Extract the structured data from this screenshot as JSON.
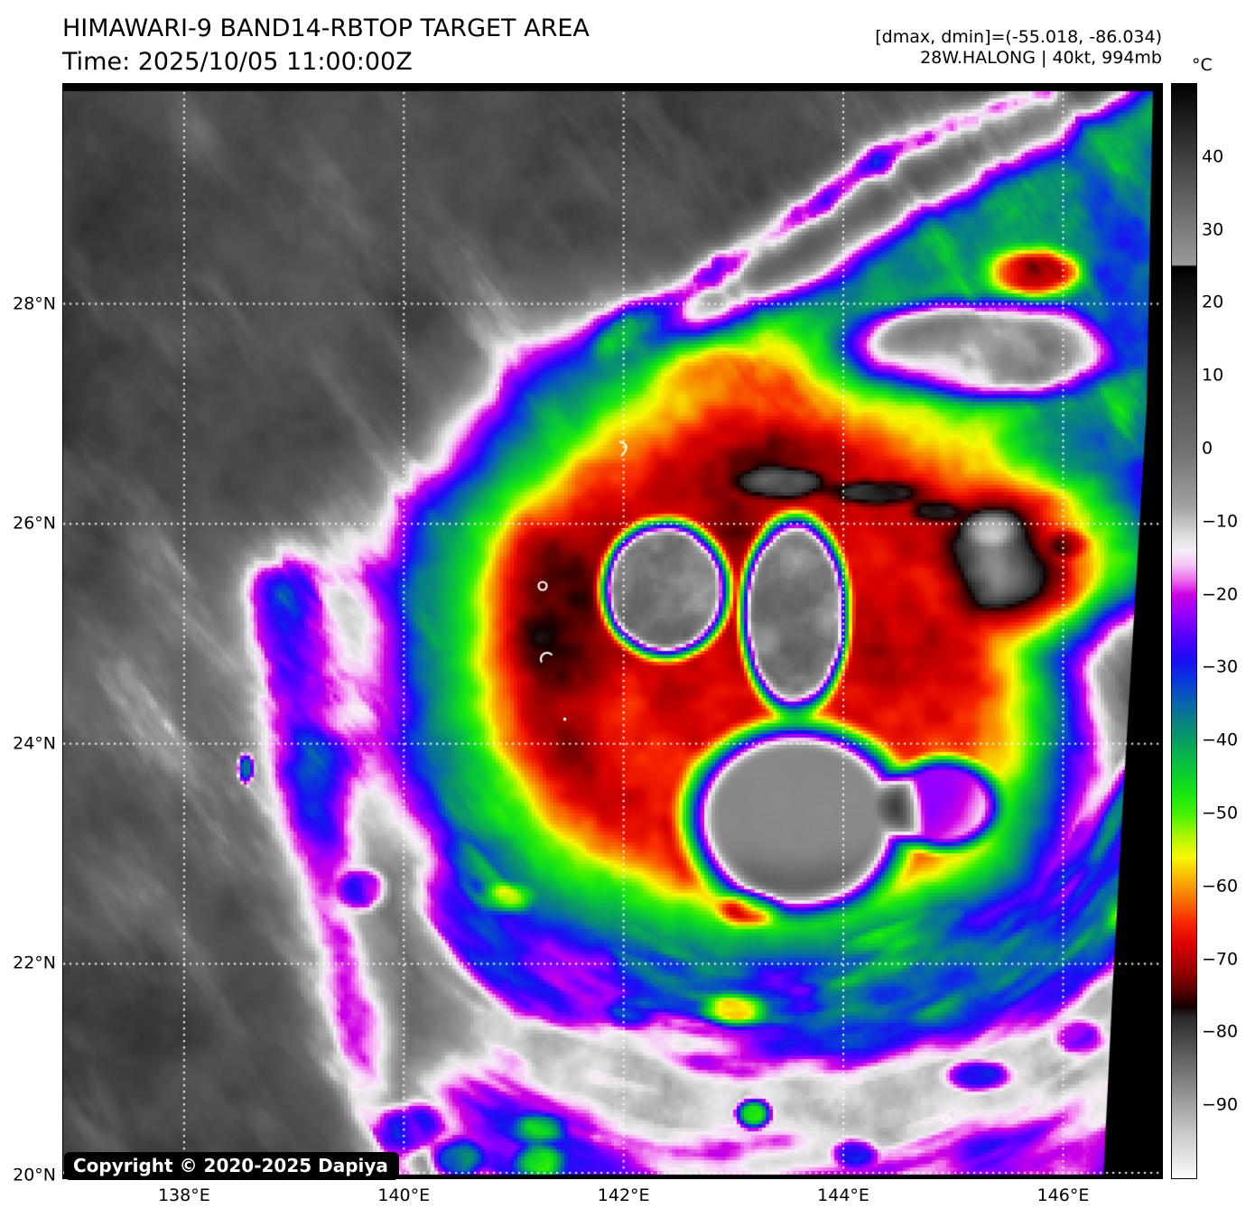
{
  "header": {
    "title": "HIMAWARI-9 BAND14-RBTOP TARGET AREA",
    "time_line": "Time: 2025/10/05 11:00:00Z",
    "dmax_dmin": "[dmax, dmin]=(-55.018, -86.034)",
    "storm_info": "28W.HALONG | 40kt, 994mb"
  },
  "colorbar": {
    "unit": "°C",
    "vmax": 50,
    "vmin": -100,
    "ticks": [
      {
        "v": 40,
        "label": "40"
      },
      {
        "v": 30,
        "label": "30"
      },
      {
        "v": 20,
        "label": "20"
      },
      {
        "v": 10,
        "label": "10"
      },
      {
        "v": 0,
        "label": "0"
      },
      {
        "v": -10,
        "label": "−10"
      },
      {
        "v": -20,
        "label": "−20"
      },
      {
        "v": -30,
        "label": "−30"
      },
      {
        "v": -40,
        "label": "−40"
      },
      {
        "v": -50,
        "label": "−50"
      },
      {
        "v": -60,
        "label": "−60"
      },
      {
        "v": -70,
        "label": "−70"
      },
      {
        "v": -80,
        "label": "−80"
      },
      {
        "v": -90,
        "label": "−90"
      }
    ],
    "stops": [
      [
        50,
        "#000000"
      ],
      [
        25.2,
        "#9a9a9a"
      ],
      [
        25,
        "#000000"
      ],
      [
        10,
        "#4a4a4a"
      ],
      [
        0,
        "#6f6f6f"
      ],
      [
        -8,
        "#a2a2a2"
      ],
      [
        -12,
        "#dedede"
      ],
      [
        -14,
        "#f6ecf6"
      ],
      [
        -16,
        "#f6c2f6"
      ],
      [
        -18,
        "#ee6cee"
      ],
      [
        -20,
        "#cc00e4"
      ],
      [
        -23,
        "#8f00ff"
      ],
      [
        -26,
        "#4f00ff"
      ],
      [
        -29,
        "#1a0ef2"
      ],
      [
        -32,
        "#083cda"
      ],
      [
        -35,
        "#0866aa"
      ],
      [
        -38,
        "#08887a"
      ],
      [
        -41,
        "#08a858"
      ],
      [
        -44,
        "#08c836"
      ],
      [
        -47,
        "#14e414"
      ],
      [
        -50,
        "#44f000"
      ],
      [
        -53,
        "#aaf600"
      ],
      [
        -56,
        "#f8f800"
      ],
      [
        -59,
        "#f8b200"
      ],
      [
        -62,
        "#f86e00"
      ],
      [
        -65,
        "#f82600"
      ],
      [
        -68,
        "#d80000"
      ],
      [
        -71,
        "#a60000"
      ],
      [
        -74,
        "#5e0000"
      ],
      [
        -76.5,
        "#120000"
      ],
      [
        -78,
        "#2a2a2a"
      ],
      [
        -82,
        "#525252"
      ],
      [
        -88,
        "#8e8e8e"
      ],
      [
        -94,
        "#cacaca"
      ],
      [
        -100,
        "#fbfbfb"
      ]
    ]
  },
  "map": {
    "copyright": "Copyright © 2020-2025 Dapiya",
    "bounds": {
      "lon_min": 136.9,
      "lon_max": 146.9,
      "lat_min": 20.05,
      "lat_max": 30.0
    },
    "x_ticks": [
      {
        "label": "138°E",
        "lon": 138
      },
      {
        "label": "140°E",
        "lon": 140
      },
      {
        "label": "142°E",
        "lon": 142
      },
      {
        "label": "144°E",
        "lon": 144
      },
      {
        "label": "146°E",
        "lon": 146
      }
    ],
    "y_ticks": [
      {
        "label": "28°N",
        "lat": 28
      },
      {
        "label": "26°N",
        "lat": 26
      },
      {
        "label": "24°N",
        "lat": 24
      },
      {
        "label": "22°N",
        "lat": 22
      },
      {
        "label": "20°N",
        "lat": 20
      }
    ]
  }
}
